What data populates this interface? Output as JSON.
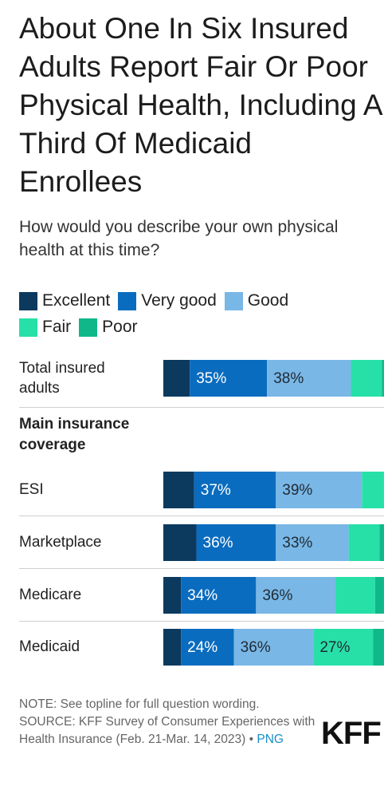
{
  "header": {
    "title": "About One In Six Insured Adults Report Fair Or Poor Physical Health, Including A Third Of Medicaid Enrollees",
    "subtitle": "How would you describe your own physical health at this time?"
  },
  "chart_data": {
    "type": "bar",
    "orientation": "horizontal",
    "stacked": true,
    "title": "About One In Six Insured Adults Report Fair Or Poor Physical Health, Including A Third Of Medicaid Enrollees",
    "subtitle": "How would you describe your own physical health at this time?",
    "group_label": "Main insurance coverage",
    "categories": [
      "Total insured adults",
      "ESI",
      "Marketplace",
      "Medicare",
      "Medicaid"
    ],
    "series": [
      {
        "name": "Excellent",
        "color": "#0b3a5e",
        "values": [
          12,
          14,
          15,
          8,
          8
        ]
      },
      {
        "name": "Very good",
        "color": "#0a6cbf",
        "values": [
          35,
          37,
          36,
          34,
          24
        ]
      },
      {
        "name": "Good",
        "color": "#79b7e6",
        "values": [
          38,
          39,
          33,
          36,
          36
        ]
      },
      {
        "name": "Fair",
        "color": "#27e0a8",
        "values": [
          14,
          10,
          14,
          18,
          27
        ]
      },
      {
        "name": "Poor",
        "color": "#10b889",
        "values": [
          1,
          0,
          2,
          4,
          5
        ]
      }
    ],
    "data_labels": [
      [
        "",
        "35%",
        "38%",
        "",
        ""
      ],
      [
        "",
        "37%",
        "39%",
        "",
        ""
      ],
      [
        "",
        "36%",
        "33%",
        "",
        ""
      ],
      [
        "",
        "34%",
        "36%",
        "",
        ""
      ],
      [
        "",
        "24%",
        "36%",
        "27%",
        ""
      ]
    ],
    "xlim": [
      0,
      100
    ],
    "legend_position": "top"
  },
  "legend": {
    "items": [
      {
        "label": "Excellent",
        "color": "#0b3a5e"
      },
      {
        "label": "Very good",
        "color": "#0a6cbf"
      },
      {
        "label": "Good",
        "color": "#79b7e6"
      },
      {
        "label": "Fair",
        "color": "#27e0a8"
      },
      {
        "label": "Poor",
        "color": "#10b889"
      }
    ]
  },
  "rows": [
    {
      "label_line1": "Total insured",
      "label_line2": "adults"
    },
    {
      "label": "ESI"
    },
    {
      "label": "Marketplace"
    },
    {
      "label": "Medicare"
    },
    {
      "label": "Medicaid"
    }
  ],
  "group": {
    "line1": "Main insurance",
    "line2": "coverage"
  },
  "footer": {
    "note": "NOTE: See topline for full question wording.",
    "source": "SOURCE: KFF Survey of Consumer Experiences with Health Insurance (Feb. 21-Mar. 14, 2023) •",
    "png_link": "PNG",
    "logo": "KFF"
  }
}
